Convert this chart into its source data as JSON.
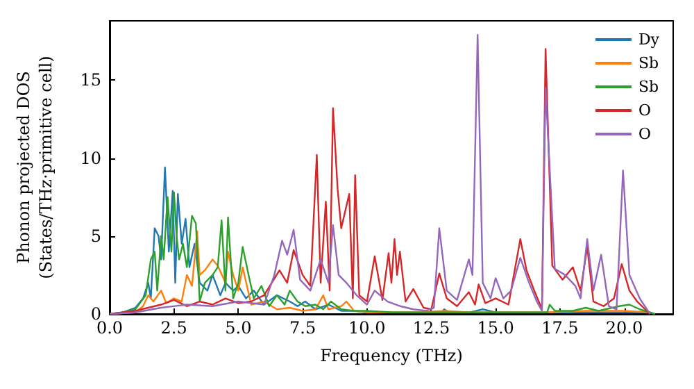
{
  "chart_data": {
    "type": "line",
    "xlabel": "Frequency (THz)",
    "ylabel": "Phonon projected DOS\n(States/THz·primitive cell)",
    "xlim": [
      0,
      21.9
    ],
    "ylim": [
      0,
      18.8
    ],
    "xticks": [
      {
        "value": 0,
        "label": "0.0"
      },
      {
        "value": 2.5,
        "label": "2.5"
      },
      {
        "value": 5,
        "label": "5.0"
      },
      {
        "value": 7.5,
        "label": "7.5"
      },
      {
        "value": 10,
        "label": "10.0"
      },
      {
        "value": 12.5,
        "label": "12.5"
      },
      {
        "value": 15,
        "label": "15.0"
      },
      {
        "value": 17.5,
        "label": "17.5"
      },
      {
        "value": 20,
        "label": "20.0"
      }
    ],
    "yticks": [
      0,
      5,
      10,
      15
    ],
    "grid": false,
    "legend": "top right",
    "marker": "none",
    "line_style": "solid",
    "series": [
      {
        "name": "Dy",
        "color": "#1f77b4",
        "x": [
          0,
          0.5,
          1.0,
          1.3,
          1.5,
          1.6,
          1.75,
          1.9,
          2.0,
          2.15,
          2.3,
          2.45,
          2.55,
          2.65,
          2.8,
          2.95,
          3.1,
          3.3,
          3.5,
          3.8,
          4.0,
          4.3,
          4.5,
          4.8,
          5.0,
          5.3,
          5.6,
          6.0,
          6.5,
          7.0,
          7.3,
          7.6,
          8.0,
          8.5,
          9.0,
          9.5,
          10,
          11,
          12,
          12.9,
          13.0,
          13.2,
          14,
          14.5,
          15,
          17,
          18,
          19,
          20,
          21
        ],
        "values": [
          0,
          0.1,
          0.4,
          1.0,
          2.0,
          1.0,
          5.5,
          5.0,
          3.5,
          9.4,
          4.0,
          7.9,
          2.0,
          7.7,
          4.5,
          6.1,
          3.0,
          4.5,
          2.0,
          1.5,
          2.5,
          1.2,
          2.0,
          1.5,
          1.8,
          1.0,
          1.5,
          0.6,
          1.2,
          0.8,
          0.5,
          0.8,
          0.3,
          0.6,
          0.2,
          0.2,
          0.1,
          0.1,
          0.1,
          0.1,
          0.3,
          0.1,
          0.1,
          0.3,
          0.1,
          0.1,
          0.1,
          0.1,
          0.1,
          0.1
        ]
      },
      {
        "name": "Sb",
        "color": "#ff7f0e",
        "x": [
          0,
          1,
          1.3,
          1.5,
          1.7,
          2.0,
          2.2,
          2.5,
          2.8,
          3.0,
          3.2,
          3.4,
          3.5,
          3.7,
          4.0,
          4.2,
          4.5,
          4.6,
          4.8,
          5.0,
          5.17,
          5.5,
          6.0,
          6.5,
          7,
          7.5,
          8,
          8.3,
          8.5,
          9,
          9.2,
          9.5,
          10,
          12,
          13,
          14,
          17,
          18.5,
          20,
          21
        ],
        "values": [
          0,
          0.1,
          0.5,
          1.2,
          0.8,
          1.5,
          0.7,
          1.0,
          0.8,
          2.5,
          1.8,
          5.3,
          2.5,
          2.8,
          3.5,
          3.1,
          2.0,
          4.0,
          2.5,
          1.5,
          3.0,
          0.6,
          0.8,
          0.3,
          0.4,
          0.2,
          0.3,
          1.2,
          0.3,
          0.5,
          0.8,
          0.2,
          0.1,
          0.1,
          0.2,
          0.1,
          0.1,
          0.2,
          0.2,
          0.1
        ]
      },
      {
        "name": "Sb",
        "color": "#2ca02c",
        "x": [
          0,
          0.5,
          1.0,
          1.4,
          1.6,
          1.75,
          1.85,
          2.0,
          2.1,
          2.25,
          2.4,
          2.5,
          2.6,
          2.7,
          2.85,
          3.0,
          3.2,
          3.35,
          3.5,
          3.7,
          4.0,
          4.2,
          4.35,
          4.5,
          4.6,
          4.8,
          5.0,
          5.17,
          5.4,
          5.6,
          5.9,
          6.2,
          6.5,
          6.8,
          7.0,
          7.3,
          7.6,
          8.0,
          8.3,
          8.6,
          9.0,
          9.5,
          10,
          11,
          12,
          13,
          14,
          15,
          16,
          17,
          17.1,
          17.3,
          18,
          18.5,
          19,
          19.8,
          20.2,
          20.6,
          21,
          21.2
        ],
        "values": [
          0,
          0.1,
          0.3,
          1.2,
          3.5,
          4.0,
          1.5,
          5.0,
          3.5,
          7.5,
          4.0,
          7.8,
          5.0,
          3.5,
          4.5,
          3.0,
          6.3,
          5.8,
          0.8,
          2.0,
          2.5,
          3.0,
          6.0,
          1.5,
          6.2,
          1.0,
          2.0,
          4.3,
          2.5,
          1.0,
          1.8,
          0.5,
          1.2,
          0.6,
          1.5,
          0.8,
          0.5,
          0.6,
          0.3,
          0.8,
          0.3,
          0.2,
          0.2,
          0.1,
          0.1,
          0.1,
          0.1,
          0.1,
          0.1,
          0.1,
          0.6,
          0.2,
          0.2,
          0.4,
          0.2,
          0.5,
          0.6,
          0.3,
          0.1,
          0
        ]
      },
      {
        "name": "O",
        "color": "#d62728",
        "x": [
          0,
          1,
          2,
          2.5,
          3,
          3.5,
          4,
          4.5,
          5,
          5.5,
          6,
          6.6,
          6.9,
          7.15,
          7.5,
          7.8,
          8.05,
          8.2,
          8.4,
          8.55,
          8.68,
          8.86,
          9.0,
          9.31,
          9.45,
          9.54,
          9.7,
          10.0,
          10.3,
          10.6,
          10.84,
          10.95,
          11.07,
          11.17,
          11.28,
          11.5,
          11.8,
          12.2,
          12.5,
          12.81,
          13.1,
          13.5,
          13.96,
          14.2,
          14.34,
          14.6,
          15.0,
          15.5,
          15.96,
          16.2,
          16.5,
          16.8,
          16.94,
          17.2,
          17.6,
          18.0,
          18.3,
          18.56,
          18.8,
          19.2,
          19.6,
          19.9,
          20.2,
          20.5,
          21.0
        ],
        "values": [
          0,
          0.2,
          0.6,
          0.9,
          0.5,
          0.8,
          0.6,
          1.0,
          0.7,
          0.8,
          1.2,
          2.8,
          2.0,
          4.1,
          2.5,
          1.8,
          10.2,
          2.0,
          7.2,
          1.5,
          13.2,
          8.0,
          5.5,
          7.7,
          1.0,
          8.9,
          1.2,
          0.8,
          3.7,
          0.9,
          3.9,
          2.0,
          4.8,
          2.5,
          4.0,
          0.8,
          1.6,
          0.4,
          0.3,
          2.6,
          1.0,
          0.5,
          1.4,
          0.6,
          1.9,
          0.7,
          1.0,
          0.6,
          4.8,
          2.8,
          1.5,
          0.3,
          17.0,
          3.1,
          2.2,
          3.0,
          1.5,
          4.3,
          0.8,
          0.5,
          1.0,
          3.2,
          1.5,
          0.8,
          0
        ]
      },
      {
        "name": "O",
        "color": "#9467bd",
        "x": [
          0,
          1,
          2,
          3,
          4,
          5,
          6,
          6.4,
          6.7,
          6.9,
          7.15,
          7.4,
          7.8,
          8.2,
          8.5,
          8.68,
          8.9,
          9.2,
          9.6,
          10.0,
          10.3,
          10.8,
          11.3,
          11.8,
          12.3,
          12.6,
          12.81,
          13.1,
          13.5,
          13.96,
          14.1,
          14.3,
          14.5,
          14.8,
          15.0,
          15.3,
          15.6,
          15.96,
          16.3,
          16.6,
          16.8,
          16.94,
          17.3,
          17.7,
          18.1,
          18.3,
          18.56,
          18.8,
          19.1,
          19.4,
          19.7,
          19.95,
          20.2,
          20.6,
          21.0
        ],
        "values": [
          0,
          0.1,
          0.4,
          0.6,
          0.5,
          0.8,
          0.6,
          2.5,
          4.7,
          3.8,
          5.4,
          2.2,
          1.5,
          3.5,
          2.0,
          5.7,
          2.5,
          2.0,
          1.2,
          0.6,
          1.5,
          0.8,
          0.5,
          0.3,
          0.2,
          0.4,
          5.5,
          1.5,
          0.9,
          3.5,
          2.5,
          17.9,
          2.0,
          1.0,
          2.3,
          1.0,
          1.5,
          3.6,
          2.0,
          0.8,
          0.2,
          14.5,
          2.9,
          2.5,
          1.8,
          1.0,
          4.8,
          1.5,
          3.8,
          0.5,
          0.3,
          9.2,
          2.5,
          1.0,
          0
        ]
      }
    ]
  }
}
